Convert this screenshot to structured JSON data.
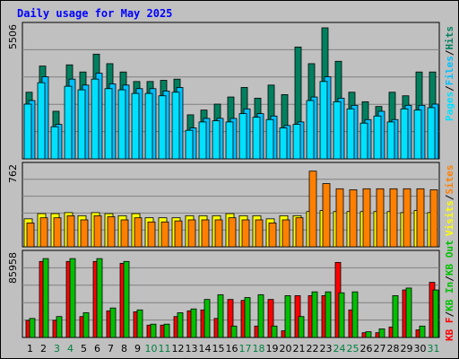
{
  "colors": {
    "page_bg": "#c0c0c0",
    "plot_bg": "#c0c0c0",
    "title": "#0000ff",
    "hits": "#00805f",
    "files": "#00c0ff",
    "pages": "#00e0ff",
    "visits": "#ffff00",
    "sites": "#ff8000",
    "kb_f": "#ff0000",
    "kb_in": "#00c000",
    "kb_out": "#00c000",
    "weekend_label": "#008040",
    "weekday_label": "#000000"
  },
  "chart_data": [
    {
      "type": "bar",
      "panel": "hits-files-pages",
      "title": "Daily usage for May 2025",
      "ymax_label": "5506",
      "ylim": [
        0,
        5506
      ],
      "categories": [
        "1",
        "2",
        "3",
        "4",
        "5",
        "6",
        "7",
        "8",
        "9",
        "10",
        "11",
        "12",
        "13",
        "14",
        "15",
        "16",
        "17",
        "18",
        "19",
        "20",
        "21",
        "22",
        "23",
        "24",
        "25",
        "26",
        "27",
        "28",
        "29",
        "30",
        "31"
      ],
      "weekend_days": [
        "3",
        "4",
        "10",
        "11",
        "17",
        "18",
        "24",
        "25",
        "31"
      ],
      "legend": [
        "Pages",
        "/",
        "Files",
        "/",
        "Hits"
      ],
      "series": [
        {
          "name": "Hits",
          "color_key": "hits",
          "values": [
            2800,
            3900,
            2000,
            3950,
            3650,
            4400,
            4000,
            3650,
            3250,
            3250,
            3300,
            3350,
            1850,
            2050,
            2300,
            2600,
            3000,
            2550,
            3100,
            2700,
            4700,
            4000,
            5506,
            4100,
            2800,
            2400,
            2200,
            2800,
            2650,
            3650,
            3650
          ]
        },
        {
          "name": "Files",
          "color_key": "files",
          "values": [
            2450,
            3450,
            1450,
            3350,
            3100,
            3600,
            3150,
            3100,
            2950,
            2950,
            2850,
            3000,
            1300,
            1700,
            1700,
            1700,
            2100,
            1900,
            1800,
            1400,
            1550,
            2600,
            3450,
            2550,
            2250,
            1650,
            2000,
            1650,
            2250,
            2250,
            2300
          ]
        },
        {
          "name": "Pages",
          "color_key": "pages",
          "values": [
            2300,
            3200,
            1350,
            3050,
            2900,
            3350,
            2950,
            2900,
            2750,
            2750,
            2650,
            2800,
            1200,
            1550,
            1600,
            1550,
            1900,
            1750,
            1650,
            1300,
            1450,
            2450,
            3250,
            2400,
            2100,
            1500,
            1800,
            1550,
            2100,
            2050,
            2150
          ]
        }
      ]
    },
    {
      "type": "bar",
      "panel": "visits-sites",
      "ymax_label": "762",
      "ylim": [
        0,
        762
      ],
      "legend": [
        "Visits",
        "/",
        "Sites"
      ],
      "series": [
        {
          "name": "Visits",
          "color_key": "visits",
          "values": [
            270,
            320,
            320,
            330,
            300,
            330,
            320,
            300,
            320,
            280,
            280,
            280,
            300,
            300,
            300,
            320,
            300,
            300,
            270,
            300,
            300,
            340,
            350,
            340,
            340,
            340,
            340,
            340,
            330,
            350,
            330
          ]
        },
        {
          "name": "Sites",
          "color_key": "sites",
          "values": [
            230,
            280,
            280,
            300,
            260,
            300,
            290,
            260,
            280,
            240,
            240,
            250,
            260,
            260,
            260,
            280,
            260,
            260,
            230,
            260,
            280,
            730,
            610,
            560,
            550,
            560,
            560,
            560,
            560,
            560,
            550
          ]
        }
      ]
    },
    {
      "type": "bar",
      "panel": "kb-f-in-out",
      "ymax_label": "85958",
      "ylim": [
        0,
        85958
      ],
      "legend": [
        "KB F",
        "/",
        "KB In",
        "/",
        "KB Out"
      ],
      "series": [
        {
          "name": "KB F",
          "color_key": "kb_f",
          "values": [
            18000,
            80000,
            18000,
            80000,
            22000,
            80000,
            28000,
            78000,
            27000,
            13000,
            13000,
            22000,
            28000,
            29000,
            20000,
            40000,
            39000,
            12000,
            40000,
            7000,
            44000,
            44000,
            44000,
            79000,
            29000,
            5000,
            5000,
            11000,
            50000,
            8000,
            58000
          ]
        },
        {
          "name": "KB In",
          "color_key": "kb_in",
          "values": [
            20000,
            83000,
            22000,
            83000,
            26000,
            83000,
            31000,
            80000,
            29000,
            14000,
            14000,
            26000,
            30000,
            40000,
            45000,
            12000,
            42000,
            45000,
            12000,
            44000,
            22000,
            48000,
            48000,
            47000,
            48000,
            6000,
            9000,
            44000,
            52000,
            12000,
            50000
          ]
        },
        {
          "name": "KB Out",
          "color_key": "kb_out",
          "values": [
            20000,
            83000,
            22000,
            83000,
            26000,
            83000,
            31000,
            80000,
            29000,
            14000,
            14000,
            26000,
            30000,
            40000,
            45000,
            12000,
            42000,
            45000,
            12000,
            44000,
            22000,
            48000,
            48000,
            47000,
            48000,
            6000,
            9000,
            44000,
            52000,
            12000,
            50000
          ]
        }
      ]
    }
  ]
}
